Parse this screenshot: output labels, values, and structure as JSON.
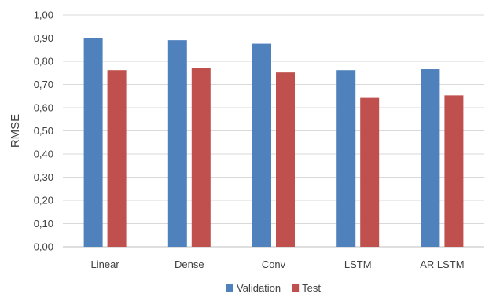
{
  "chart_data": {
    "type": "bar",
    "categories": [
      "Linear",
      "Dense",
      "Conv",
      "LSTM",
      "AR LSTM"
    ],
    "series": [
      {
        "name": "Validation",
        "color": "#4f81bd",
        "values": [
          0.899,
          0.891,
          0.876,
          0.762,
          0.766
        ]
      },
      {
        "name": "Test",
        "color": "#c0504d",
        "values": [
          0.762,
          0.77,
          0.752,
          0.642,
          0.653
        ]
      }
    ],
    "title": "",
    "xlabel": "",
    "ylabel": "RMSE",
    "ylim": [
      0,
      1.0
    ],
    "yticks": [
      "0,00",
      "0,10",
      "0,20",
      "0,30",
      "0,40",
      "0,50",
      "0,60",
      "0,70",
      "0,80",
      "0,90",
      "1,00"
    ],
    "grid": true,
    "legend_position": "bottom"
  }
}
